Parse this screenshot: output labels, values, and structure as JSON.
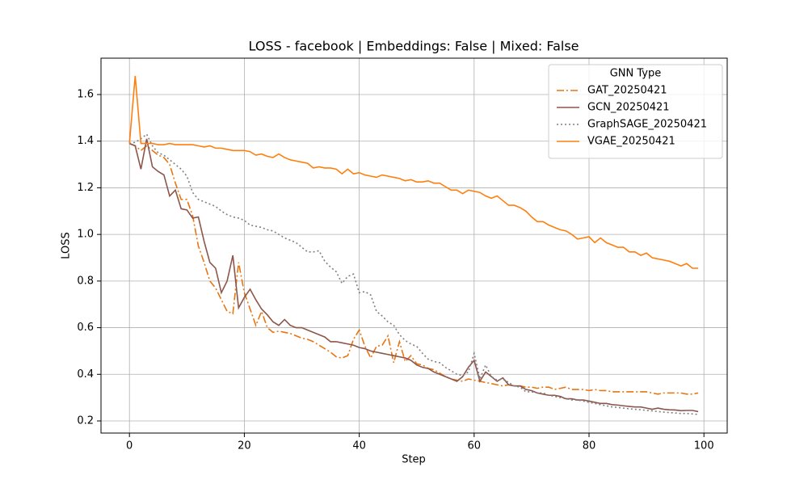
{
  "chart_data": {
    "type": "line",
    "title": "LOSS - facebook | Embeddings: False | Mixed: False",
    "x_label": "Step",
    "y_label": "LOSS",
    "x": [
      0,
      1,
      2,
      3,
      4,
      5,
      6,
      7,
      8,
      9,
      10,
      11,
      12,
      13,
      14,
      15,
      16,
      17,
      18,
      19,
      20,
      21,
      22,
      23,
      24,
      25,
      26,
      27,
      28,
      29,
      30,
      31,
      32,
      33,
      34,
      35,
      36,
      37,
      38,
      39,
      40,
      41,
      42,
      43,
      44,
      45,
      46,
      47,
      48,
      49,
      50,
      51,
      52,
      53,
      54,
      55,
      56,
      57,
      58,
      59,
      60,
      61,
      62,
      63,
      64,
      65,
      66,
      67,
      68,
      69,
      70,
      71,
      72,
      73,
      74,
      75,
      76,
      77,
      78,
      79,
      80,
      81,
      82,
      83,
      84,
      85,
      86,
      87,
      88,
      89,
      90,
      91,
      92,
      93,
      94,
      95,
      96,
      97,
      98,
      99
    ],
    "xlim": [
      -4.95,
      104.05
    ],
    "xticks": [
      0,
      20,
      40,
      60,
      80,
      100
    ],
    "ylim": [
      0.148,
      1.756
    ],
    "yticks": [
      0.2,
      0.4,
      0.6,
      0.8,
      {
        "value": 1,
        "label": "1.0"
      },
      1.2,
      1.4,
      1.6
    ],
    "grid": true,
    "legend_title": "GNN Type",
    "legend_position": "upper-right",
    "series": [
      {
        "name": "GAT_20250421",
        "color": "#e8750f",
        "style": "dashdot",
        "values": [
          1.39,
          1.38,
          1.36,
          1.38,
          1.36,
          1.34,
          1.33,
          1.3,
          1.22,
          1.15,
          1.15,
          1.08,
          0.95,
          0.88,
          0.8,
          0.77,
          0.72,
          0.67,
          0.66,
          0.88,
          0.75,
          0.68,
          0.61,
          0.67,
          0.6,
          0.58,
          0.585,
          0.58,
          0.575,
          0.565,
          0.555,
          0.55,
          0.54,
          0.525,
          0.51,
          0.495,
          0.475,
          0.47,
          0.48,
          0.55,
          0.59,
          0.52,
          0.47,
          0.52,
          0.525,
          0.565,
          0.45,
          0.54,
          0.455,
          0.48,
          0.445,
          0.44,
          0.425,
          0.42,
          0.405,
          0.39,
          0.38,
          0.375,
          0.37,
          0.38,
          0.375,
          0.37,
          0.365,
          0.36,
          0.355,
          0.35,
          0.355,
          0.35,
          0.35,
          0.345,
          0.345,
          0.34,
          0.345,
          0.345,
          0.335,
          0.34,
          0.345,
          0.335,
          0.335,
          0.335,
          0.33,
          0.335,
          0.33,
          0.33,
          0.325,
          0.325,
          0.325,
          0.325,
          0.325,
          0.325,
          0.325,
          0.32,
          0.315,
          0.32,
          0.32,
          0.32,
          0.32,
          0.315,
          0.315,
          0.32
        ]
      },
      {
        "name": "GCN_20250421",
        "color": "#8c564b",
        "style": "solid",
        "values": [
          1.39,
          1.38,
          1.28,
          1.41,
          1.29,
          1.27,
          1.255,
          1.165,
          1.19,
          1.11,
          1.105,
          1.07,
          1.075,
          0.97,
          0.88,
          0.855,
          0.75,
          0.8,
          0.91,
          0.685,
          0.73,
          0.765,
          0.72,
          0.68,
          0.655,
          0.625,
          0.61,
          0.635,
          0.61,
          0.6,
          0.6,
          0.59,
          0.58,
          0.57,
          0.56,
          0.54,
          0.54,
          0.535,
          0.53,
          0.525,
          0.515,
          0.51,
          0.5,
          0.495,
          0.49,
          0.485,
          0.48,
          0.475,
          0.47,
          0.46,
          0.44,
          0.43,
          0.425,
          0.41,
          0.4,
          0.39,
          0.38,
          0.37,
          0.39,
          0.43,
          0.46,
          0.37,
          0.41,
          0.39,
          0.37,
          0.385,
          0.355,
          0.35,
          0.35,
          0.335,
          0.33,
          0.32,
          0.315,
          0.31,
          0.31,
          0.305,
          0.295,
          0.295,
          0.29,
          0.29,
          0.285,
          0.28,
          0.275,
          0.275,
          0.27,
          0.268,
          0.265,
          0.262,
          0.26,
          0.26,
          0.255,
          0.25,
          0.255,
          0.25,
          0.248,
          0.247,
          0.244,
          0.245,
          0.245,
          0.24
        ]
      },
      {
        "name": "GraphSAGE_20250421",
        "color": "#7f7f7f",
        "style": "dotted",
        "values": [
          1.39,
          1.395,
          1.41,
          1.43,
          1.38,
          1.35,
          1.34,
          1.32,
          1.3,
          1.28,
          1.25,
          1.18,
          1.15,
          1.14,
          1.13,
          1.12,
          1.1,
          1.085,
          1.075,
          1.07,
          1.06,
          1.04,
          1.035,
          1.03,
          1.02,
          1.015,
          1.0,
          0.985,
          0.975,
          0.965,
          0.945,
          0.925,
          0.925,
          0.93,
          0.885,
          0.86,
          0.84,
          0.79,
          0.82,
          0.83,
          0.75,
          0.755,
          0.74,
          0.67,
          0.65,
          0.625,
          0.61,
          0.57,
          0.545,
          0.53,
          0.52,
          0.49,
          0.465,
          0.455,
          0.45,
          0.43,
          0.415,
          0.4,
          0.395,
          0.41,
          0.49,
          0.38,
          0.44,
          0.39,
          0.375,
          0.38,
          0.365,
          0.35,
          0.345,
          0.325,
          0.325,
          0.32,
          0.32,
          0.31,
          0.305,
          0.3,
          0.295,
          0.29,
          0.29,
          0.285,
          0.28,
          0.275,
          0.27,
          0.265,
          0.26,
          0.258,
          0.255,
          0.252,
          0.25,
          0.248,
          0.245,
          0.243,
          0.24,
          0.238,
          0.236,
          0.234,
          0.232,
          0.232,
          0.23,
          0.228
        ]
      },
      {
        "name": "VGAE_20250421",
        "color": "#ff7f0e",
        "style": "solid",
        "values": [
          1.39,
          1.68,
          1.39,
          1.39,
          1.39,
          1.385,
          1.385,
          1.39,
          1.385,
          1.385,
          1.385,
          1.385,
          1.38,
          1.375,
          1.38,
          1.37,
          1.37,
          1.365,
          1.36,
          1.36,
          1.36,
          1.355,
          1.34,
          1.345,
          1.335,
          1.33,
          1.345,
          1.33,
          1.32,
          1.315,
          1.31,
          1.305,
          1.285,
          1.29,
          1.285,
          1.285,
          1.28,
          1.26,
          1.28,
          1.26,
          1.265,
          1.255,
          1.25,
          1.245,
          1.255,
          1.25,
          1.245,
          1.24,
          1.23,
          1.235,
          1.225,
          1.225,
          1.23,
          1.22,
          1.22,
          1.205,
          1.19,
          1.19,
          1.175,
          1.19,
          1.185,
          1.18,
          1.165,
          1.155,
          1.165,
          1.145,
          1.125,
          1.125,
          1.115,
          1.1,
          1.075,
          1.055,
          1.055,
          1.04,
          1.03,
          1.02,
          1.015,
          1.0,
          0.98,
          0.985,
          0.99,
          0.965,
          0.985,
          0.965,
          0.955,
          0.945,
          0.945,
          0.925,
          0.925,
          0.91,
          0.92,
          0.9,
          0.895,
          0.89,
          0.885,
          0.875,
          0.865,
          0.875,
          0.855,
          0.855
        ]
      }
    ]
  }
}
